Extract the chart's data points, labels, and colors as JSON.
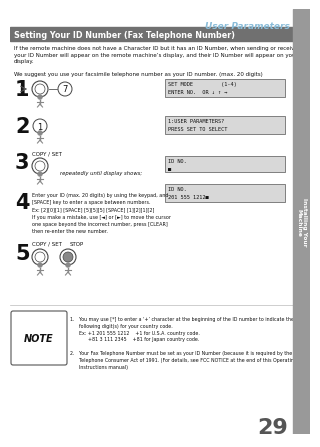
{
  "title": "User Parameters",
  "title_color": "#8bbdd9",
  "section_title": "Setting Your ID Number (Fax Telephone Number)",
  "section_bg": "#707070",
  "section_fg": "#ffffff",
  "body_text": "If the remote machine does not have a Character ID but it has an ID Number, when sending or receiving,\nyour ID Number will appear on the remote machine’s display, and their ID Number will appear on your\ndisplay.",
  "suggest_text": "We suggest you use your facsimile telephone number as your ID number. (max. 20 digits)",
  "step3_label": "COPY / SET",
  "step3_sub": "repeatedly until display shows;",
  "step4_line1": "Enter your ID (max. 20 digits) by using the keypad, and",
  "step4_line2": "[SPACE] key to enter a space between numbers.",
  "step4_line3": "Ex: [2][0][1] [SPACE] [5][5][5] [SPACE] [1][2][1][2]",
  "step4_line4": "If you make a mistake, use [◄] or [►] to move the cursor",
  "step4_line5": "one space beyond the incorrect number, press [CLEAR]",
  "step4_line6": "then re-enter the new number.",
  "step5_label1": "COPY / SET",
  "step5_label2": "STOP",
  "note_title": "NOTE",
  "note1a": "1.   You may use [*] to enter a ‘+’ character at the beginning of the ID number to indicate the",
  "note1b": "      following digit(s) for your country code.",
  "note1c": "      Ex: +1 201 555 1212    +1 for U.S.A. country code.",
  "note1d": "            +81 3 111 2345    +81 for Japan country code.",
  "note2a": "2.   Your Fax Telephone Number must be set as your ID Number (because it is required by the",
  "note2b": "      Telephone Consumer Act of 1991. (For details, see FCC NOTICE at the end of this Operating",
  "note2c": "      Instructions manual)",
  "page_num": "29",
  "tab_text": "Installing Your\nMachine",
  "display1a": "SET MODE         (1-4)",
  "display1b": "ENTER NO.  OR ↓ ↑ →",
  "display2a": "1:USER PARAMETERS?",
  "display2b": "PRESS SET TO SELECT",
  "display3a": "ID NO.",
  "display3b": "■",
  "display4a": "ID NO.",
  "display4b": "201 555 1212■",
  "bg_color": "#ffffff",
  "sidebar_color": "#999999",
  "display_bg": "#d8d8d8",
  "display_border": "#555555"
}
